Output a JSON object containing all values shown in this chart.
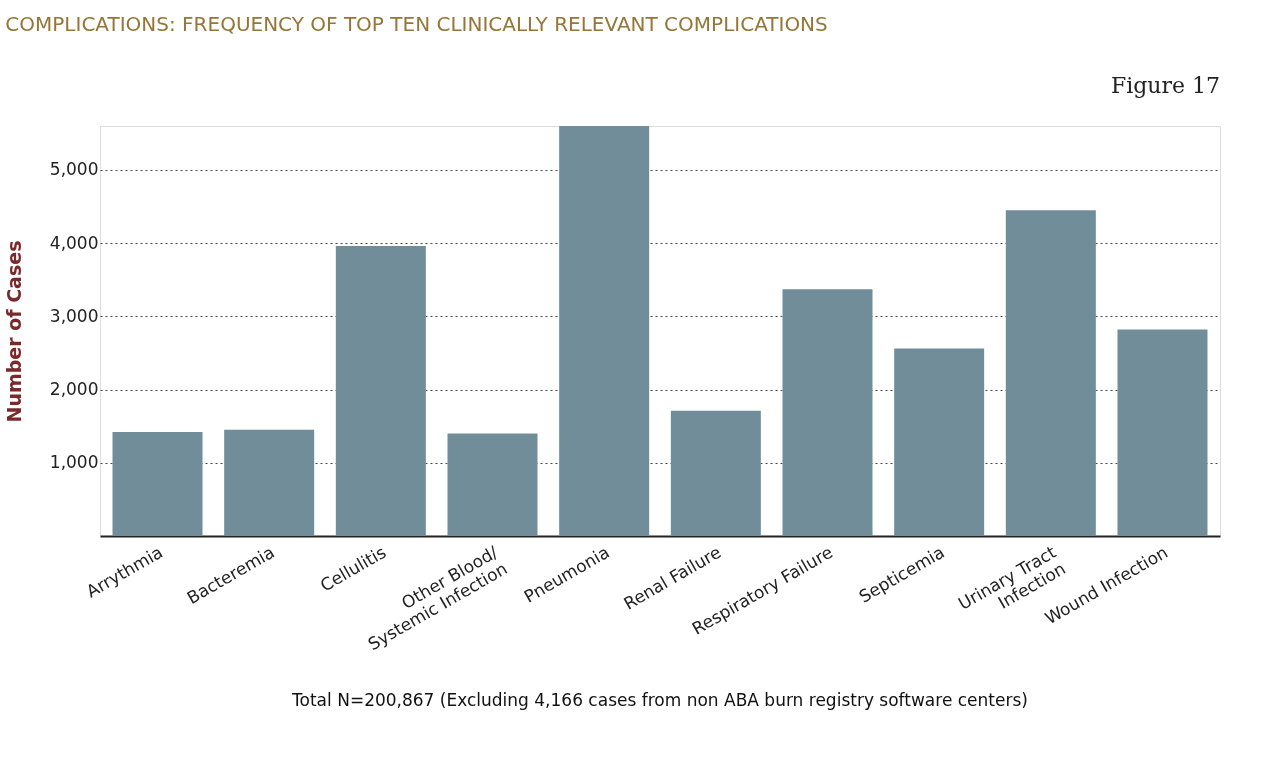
{
  "chart_data": {
    "type": "bar",
    "title": "COMPLICATIONS: FREQUENCY OF TOP TEN CLINICALLY RELEVANT COMPLICATIONS",
    "ylabel": "Number of Cases",
    "categories": [
      "Arrythmia",
      "Bacteremia",
      "Cellulitis",
      "Other Blood/\nSystemic Infection",
      "Pneumonia",
      "Renal Failure",
      "Respiratory Failure",
      "Septicemia",
      "Urinary Tract\nInfection",
      "Wound Infection"
    ],
    "values": [
      1420,
      1450,
      3960,
      1400,
      5600,
      1710,
      3370,
      2560,
      4450,
      2820
    ],
    "color": "#718d99",
    "ylim": [
      0,
      5600
    ],
    "yticks": [
      {
        "value": 1000,
        "label": "1,000"
      },
      {
        "value": 2000,
        "label": "2,000"
      },
      {
        "value": 3000,
        "label": "3,000"
      },
      {
        "value": 4000,
        "label": "4,000"
      },
      {
        "value": 5000,
        "label": "5,000"
      }
    ],
    "grid": "y",
    "annotations": [
      "Figure 17",
      "Total N=200,867 (Excluding 4,166 cases from non ABA burn registry software centers)"
    ]
  }
}
